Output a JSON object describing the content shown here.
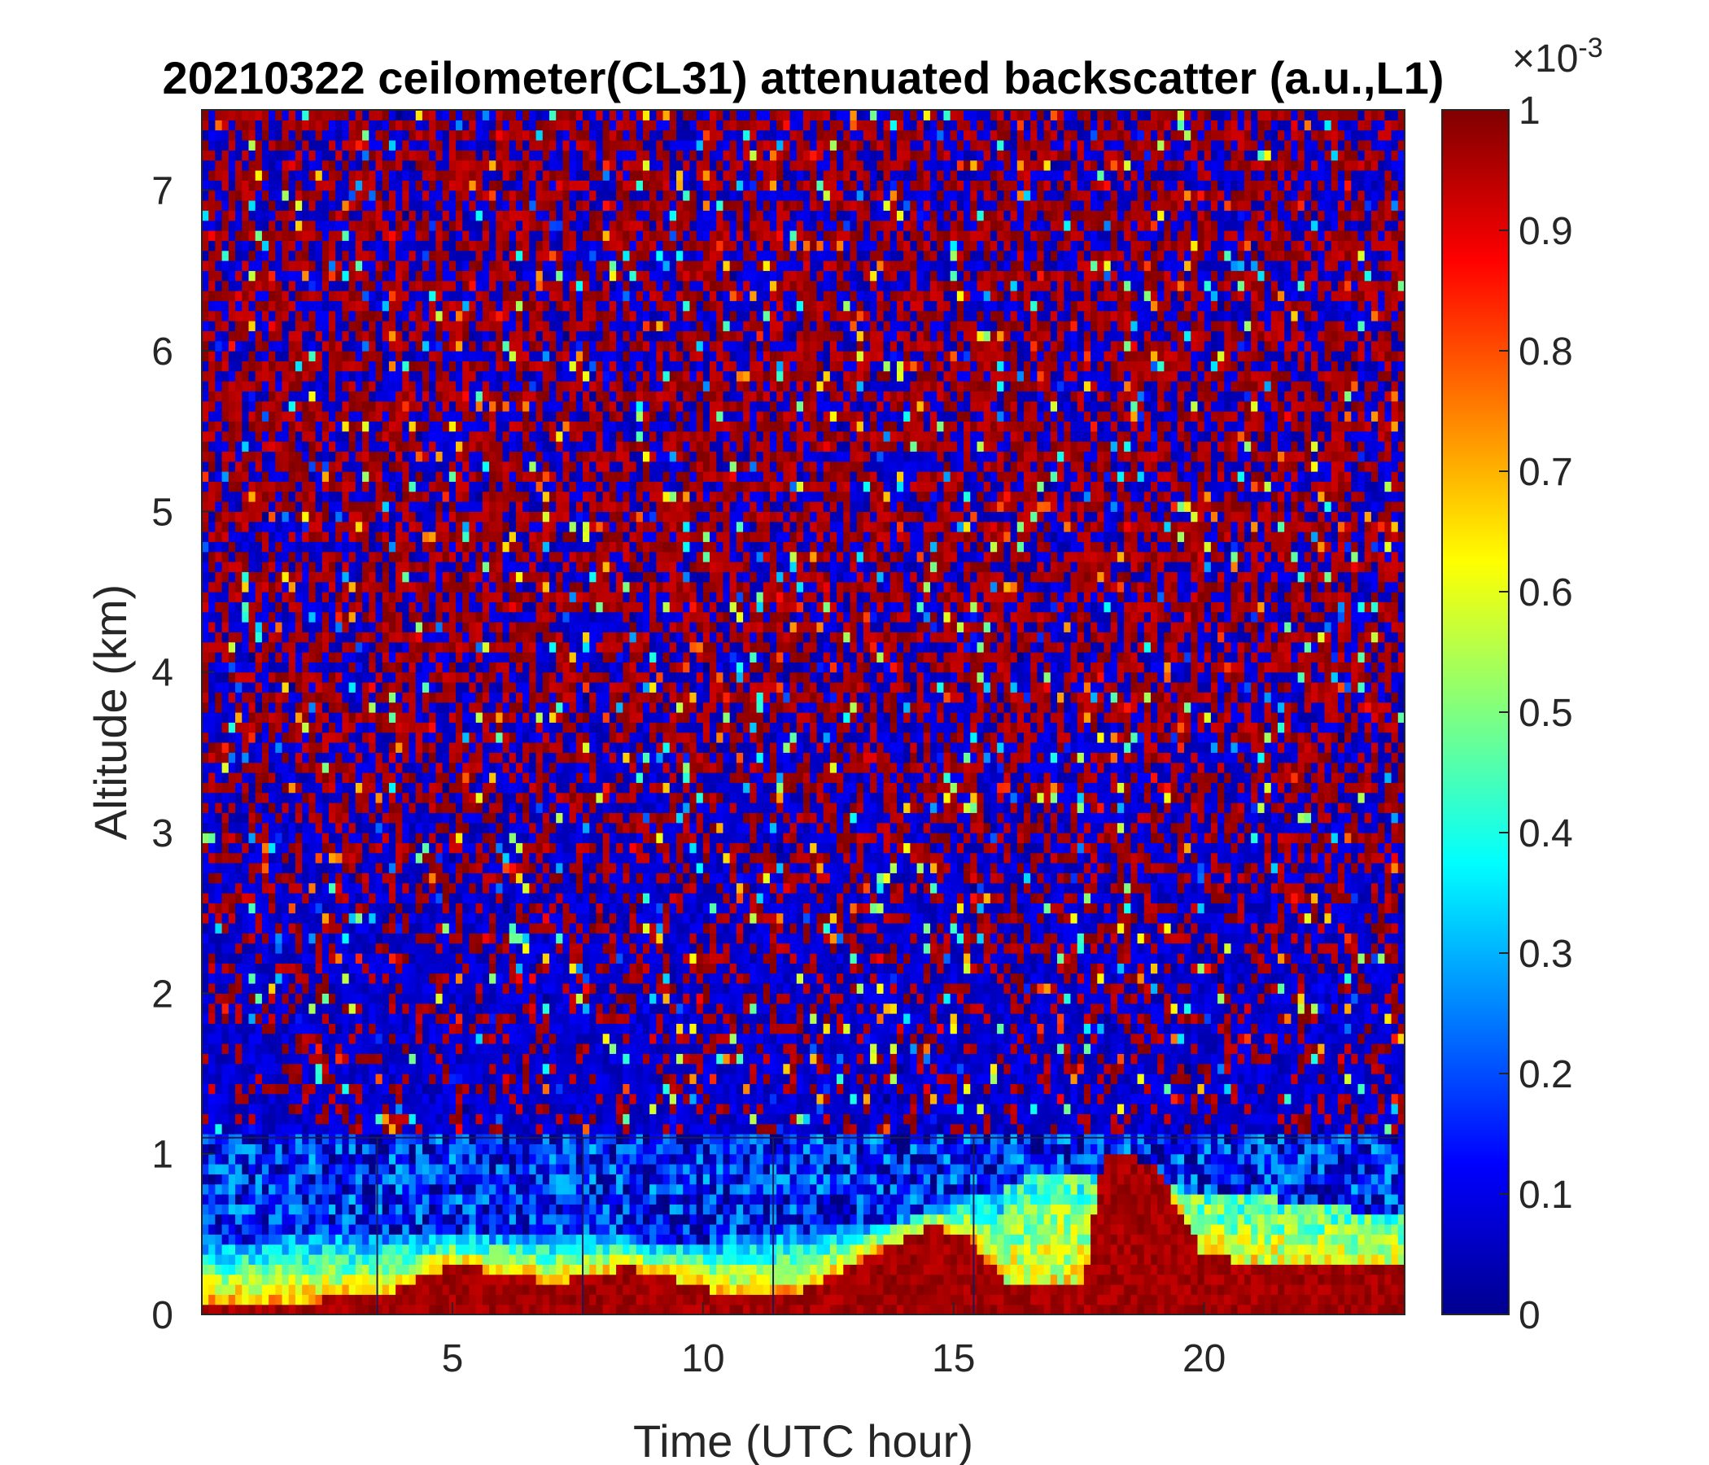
{
  "chart_data": {
    "type": "heatmap",
    "title": "20210322 ceilometer(CL31) attenuated backscatter (a.u.,L1)",
    "xlabel": "Time (UTC hour)",
    "ylabel": "Altitude (km)",
    "xlim": [
      0,
      24
    ],
    "ylim": [
      0,
      7.5
    ],
    "xticks": [
      5,
      10,
      15,
      20
    ],
    "yticks": [
      0,
      1,
      2,
      3,
      4,
      5,
      6,
      7
    ],
    "colormap": "jet",
    "colorbar": {
      "range": [
        0,
        0.001
      ],
      "ticks": [
        0,
        0.1,
        0.2,
        0.3,
        0.4,
        0.5,
        0.6,
        0.7,
        0.8,
        0.9,
        1
      ],
      "tick_labels": [
        "0",
        "0.1",
        "0.2",
        "0.3",
        "0.4",
        "0.5",
        "0.6",
        "0.7",
        "0.8",
        "0.9",
        "1"
      ],
      "exponent_base": "×10",
      "exponent": "-3"
    },
    "features": {
      "background_noise": "mixed dark-blue / dark-red speckle above ~1.1 km",
      "aerosol_layer_top_km": [
        {
          "t": 0,
          "h": 0.45
        },
        {
          "t": 3,
          "h": 0.5
        },
        {
          "t": 6,
          "h": 0.5
        },
        {
          "t": 10,
          "h": 0.45
        },
        {
          "t": 14,
          "h": 0.6
        },
        {
          "t": 17,
          "h": 0.9
        },
        {
          "t": 19,
          "h": 0.8
        },
        {
          "t": 22,
          "h": 0.7
        },
        {
          "t": 24,
          "h": 0.6
        }
      ],
      "dense_layer_top_km": [
        {
          "t": 0,
          "h": 0.08
        },
        {
          "t": 3.5,
          "h": 0.1
        },
        {
          "t": 5,
          "h": 0.32
        },
        {
          "t": 7,
          "h": 0.2
        },
        {
          "t": 8.5,
          "h": 0.3
        },
        {
          "t": 10.5,
          "h": 0.12
        },
        {
          "t": 12,
          "h": 0.15
        },
        {
          "t": 14.5,
          "h": 0.55
        },
        {
          "t": 15.3,
          "h": 0.5
        },
        {
          "t": 16,
          "h": 0.2
        },
        {
          "t": 17.6,
          "h": 0.2
        },
        {
          "t": 18,
          "h": 1.0
        },
        {
          "t": 19,
          "h": 0.95
        },
        {
          "t": 20,
          "h": 0.35
        },
        {
          "t": 24,
          "h": 0.3
        }
      ],
      "vertical_lines_hour": [
        3.5,
        7.6,
        11.4,
        15.4
      ],
      "horizontal_line_km": 1.1
    }
  }
}
